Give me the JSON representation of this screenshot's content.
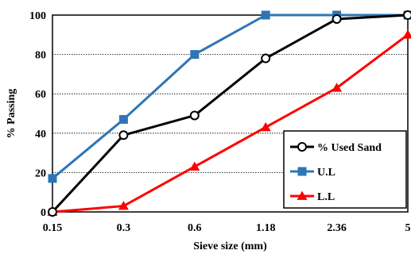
{
  "chart_data": {
    "type": "line",
    "title": "",
    "xlabel": "Sieve size (mm)",
    "ylabel": "% Passing",
    "categories": [
      "0.15",
      "0.3",
      "0.6",
      "1.18",
      "2.36",
      "5"
    ],
    "ylim": [
      0,
      100
    ],
    "yticks": [
      0,
      20,
      40,
      60,
      80,
      100
    ],
    "grid": "horizontal",
    "legend_position": "bottom-right",
    "series": [
      {
        "name": "% Used Sand",
        "values": [
          0,
          39,
          49,
          78,
          98,
          100
        ],
        "color": "#000000",
        "marker": "circle-open"
      },
      {
        "name": "U.L",
        "values": [
          17,
          47,
          80,
          100,
          100,
          100
        ],
        "color": "#2e75b6",
        "marker": "square"
      },
      {
        "name": "L.L",
        "values": [
          0,
          3,
          23,
          43,
          63,
          90
        ],
        "color": "#ff0000",
        "marker": "triangle"
      }
    ]
  }
}
